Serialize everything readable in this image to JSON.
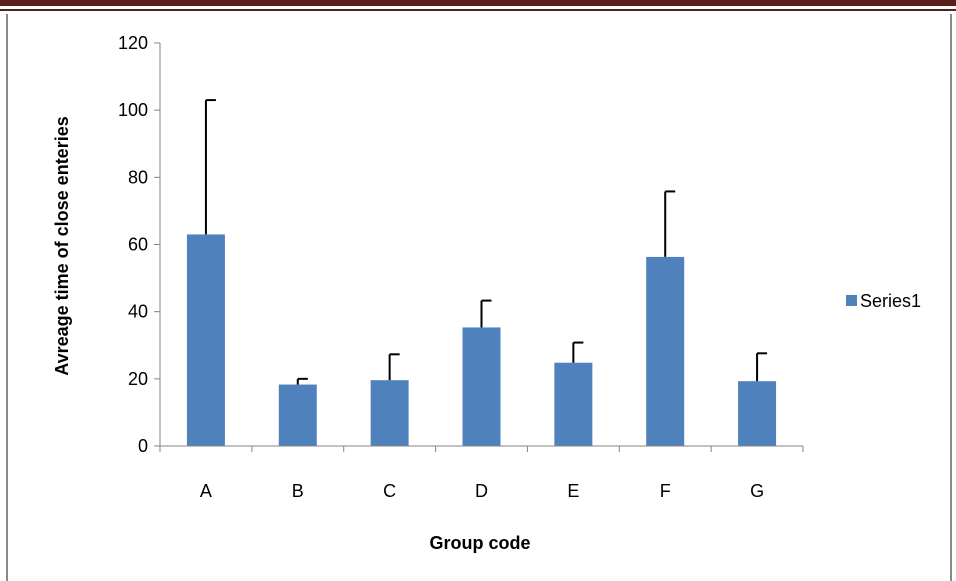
{
  "chart_data": {
    "type": "bar",
    "categories": [
      "A",
      "B",
      "C",
      "D",
      "E",
      "F",
      "G"
    ],
    "series": [
      {
        "name": "Series1",
        "values": [
          63,
          18.3,
          19.6,
          35.3,
          24.8,
          56.3,
          19.3
        ],
        "error_plus": [
          40,
          1.7,
          7.7,
          8,
          6,
          19.5,
          8.3
        ],
        "color": "#4f81bd"
      }
    ],
    "title": "",
    "xlabel": "Group code",
    "ylabel": "Avreage time of close enteries",
    "ylim": [
      0,
      120
    ],
    "yticks": [
      0,
      20,
      40,
      60,
      80,
      100,
      120
    ],
    "grid": false,
    "legend": "right"
  },
  "colors": {
    "header_rule": "#5b1f1a",
    "frame": "#8a8a8a",
    "axis": "#868686",
    "bar": "#4f81bd"
  }
}
